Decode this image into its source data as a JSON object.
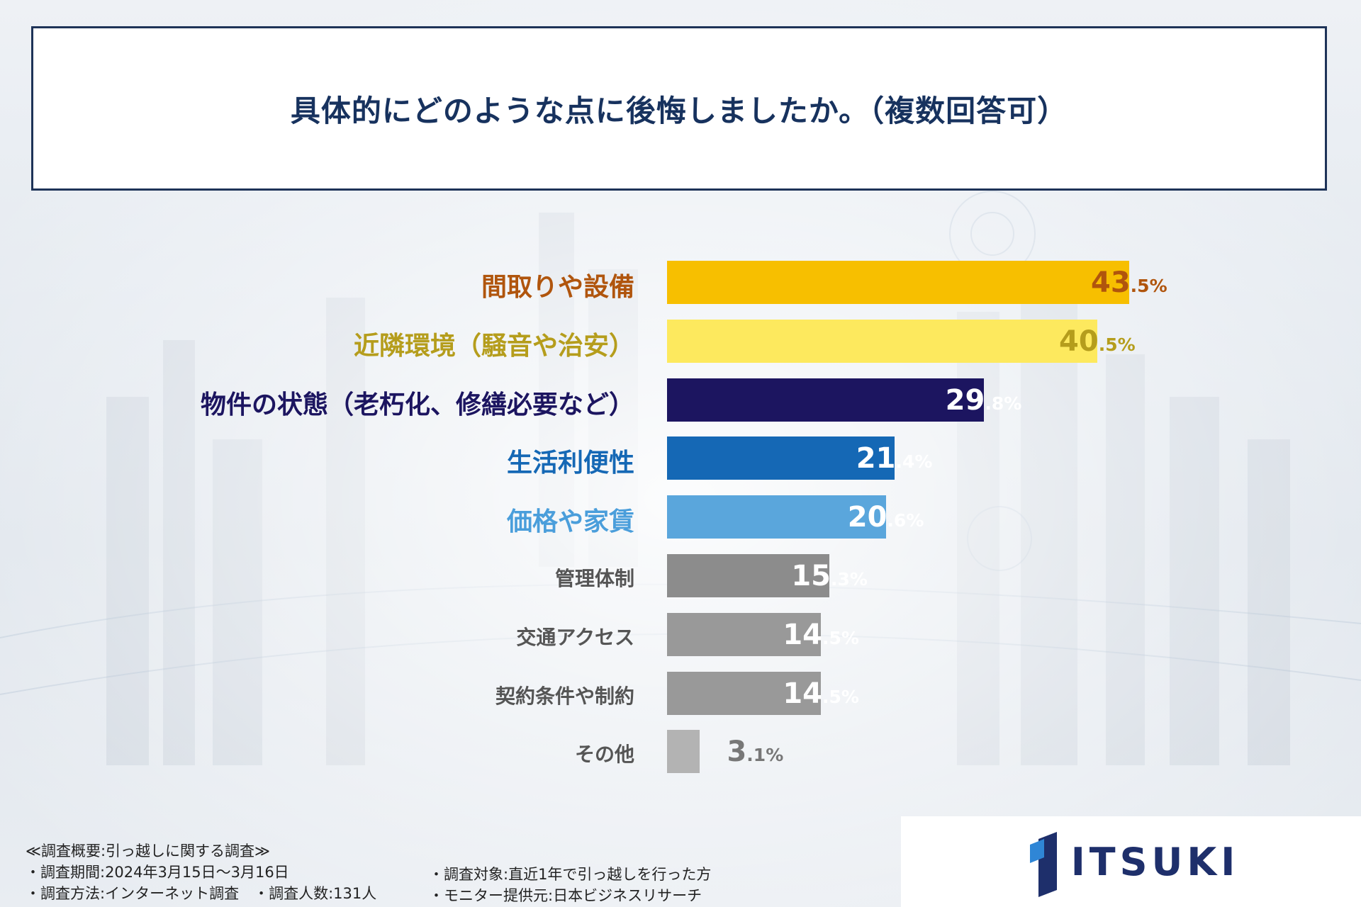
{
  "title": "具体的にどのような点に後悔しましたか。（複数回答可）",
  "chart_data": {
    "type": "bar",
    "orientation": "horizontal",
    "title": "具体的にどのような点に後悔しましたか。（複数回答可）",
    "unit": "%",
    "xlim": [
      0,
      50
    ],
    "categories": [
      "間取りや設備",
      "近隣環境（騒音や治安）",
      "物件の状態（老朽化、修繕必要など）",
      "生活利便性",
      "価格や家賃",
      "管理体制",
      "交通アクセス",
      "契約条件や制約",
      "その他"
    ],
    "values": [
      43.5,
      40.5,
      29.8,
      21.4,
      20.6,
      15.3,
      14.5,
      14.5,
      3.1
    ],
    "bar_colors": [
      "#f7bf00",
      "#fde95e",
      "#1c1560",
      "#1568b5",
      "#5aa6dc",
      "#8c8c8c",
      "#999999",
      "#999999",
      "#b3b3b3"
    ],
    "label_colors": [
      "#b0550d",
      "#b59d1c",
      "#1c1560",
      "#1568b5",
      "#4a9edb",
      "#555555",
      "#555555",
      "#555555",
      "#555555"
    ],
    "value_colors": [
      "#b0550d",
      "#b59d1c",
      "#ffffff",
      "#ffffff",
      "#ffffff",
      "#ffffff",
      "#ffffff",
      "#ffffff",
      "#777777"
    ]
  },
  "footnotes": {
    "survey_heading": "≪調査概要:引っ越しに関する調査≫",
    "period": "・調査期間:2024年3月15日～3月16日",
    "method": "・調査方法:インターネット調査　・調査人数:131人",
    "target": "・調査対象:直近1年で引っ越しを行った方",
    "provider": "・モニター提供元:日本ビジネスリサーチ"
  },
  "logo": {
    "text": "ITSUKI"
  }
}
